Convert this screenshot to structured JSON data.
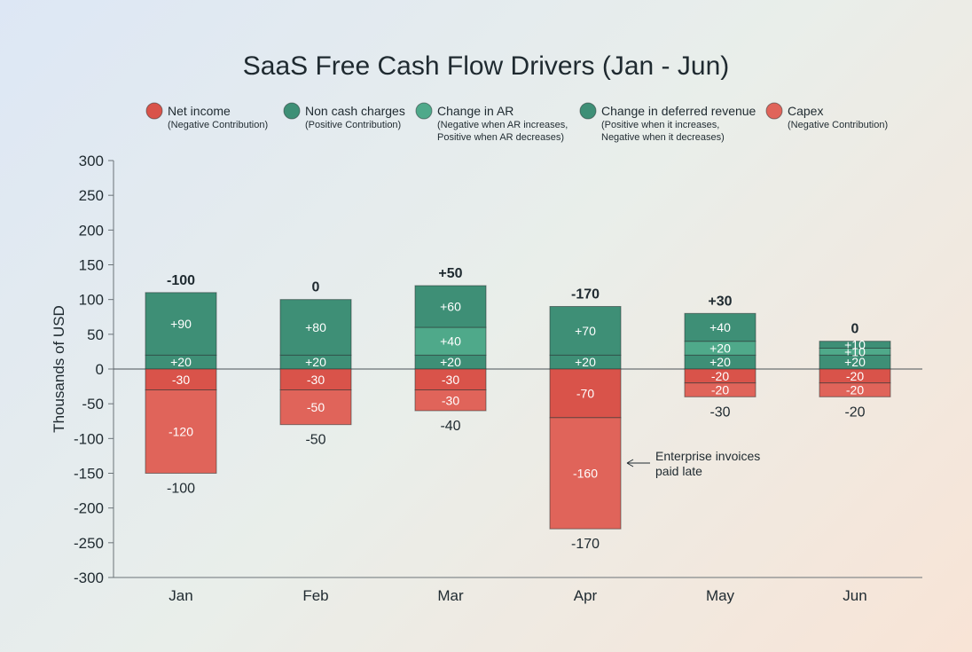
{
  "chart_data": {
    "type": "bar",
    "stacked": true,
    "title": "SaaS Free Cash Flow Drivers (Jan - Jun)",
    "xlabel": "",
    "ylabel": "Thousands of USD",
    "ylim": [
      -300,
      300
    ],
    "yticks": [
      300,
      250,
      200,
      150,
      100,
      50,
      0,
      -50,
      -100,
      -150,
      -200,
      -250,
      -300
    ],
    "categories": [
      "Jan",
      "Feb",
      "Mar",
      "Apr",
      "May",
      "Jun"
    ],
    "legend_position": "top",
    "series": [
      {
        "name": "Net income",
        "sub": [
          "(Negative Contribution)"
        ],
        "color": "#d9534a",
        "values": [
          -30,
          -30,
          -30,
          -70,
          -20,
          -20
        ]
      },
      {
        "name": "Non cash charges",
        "sub": [
          "(Positive Contribution)"
        ],
        "color": "#3e8f76",
        "values": [
          20,
          20,
          20,
          20,
          20,
          20
        ]
      },
      {
        "name": "Change in AR",
        "sub": [
          "(Negative when AR increases,",
          "Positive when AR decreases)"
        ],
        "color": "#4fa98a",
        "values": [
          0,
          0,
          40,
          0,
          20,
          10
        ]
      },
      {
        "name": "Change in deferred revenue",
        "sub": [
          "(Positive when it increases,",
          "Negative when it decreases)"
        ],
        "color": "#3e8f76",
        "values": [
          90,
          80,
          60,
          70,
          40,
          10
        ]
      },
      {
        "name": "Capex",
        "sub": [
          "(Negative Contribution)"
        ],
        "color": "#e0645a",
        "values": [
          -120,
          -50,
          -30,
          -160,
          -20,
          -20
        ]
      }
    ],
    "segment_labels": {
      "Net income": [
        "-30",
        "-30",
        "-30",
        "-70",
        "-20",
        "-20"
      ],
      "Non cash charges": [
        "+20",
        "+20",
        "+20",
        "+20",
        "+20",
        "+20"
      ],
      "Change in AR": [
        "",
        "",
        "+40",
        "",
        "+20",
        "+10"
      ],
      "Change in deferred revenue": [
        "+90",
        "+80",
        "+60",
        "+70",
        "+40",
        "+10"
      ],
      "Capex": [
        "-120",
        "-50",
        "-30",
        "-160",
        "-20",
        "-20"
      ]
    },
    "totals_top": [
      "-100",
      "0",
      "+50",
      "-170",
      "+30",
      "0"
    ],
    "totals_bottom": [
      "-100",
      "-50",
      "-40",
      "-170",
      "-30",
      "-20"
    ],
    "annotation": {
      "category": "Apr",
      "lines": [
        "Enterprise invoices",
        "paid late"
      ]
    }
  }
}
